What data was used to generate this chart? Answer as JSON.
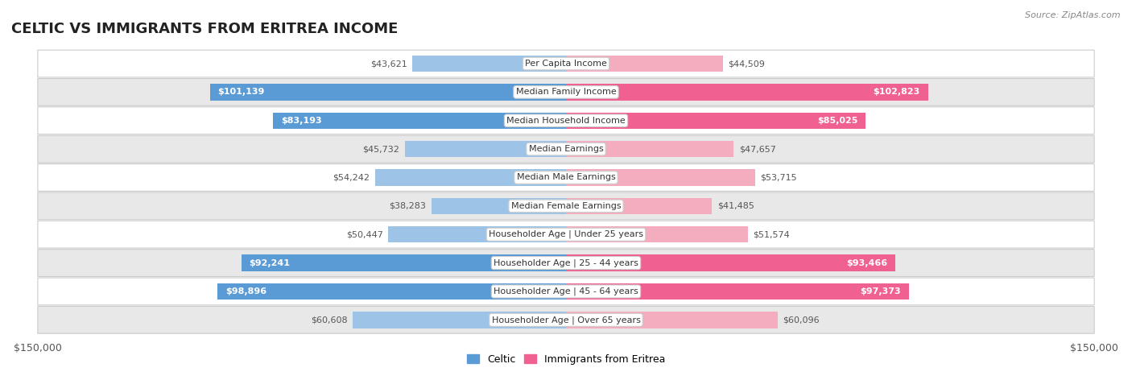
{
  "title": "Celtic vs Immigrants from Eritrea Income",
  "source": "Source: ZipAtlas.com",
  "categories": [
    "Per Capita Income",
    "Median Family Income",
    "Median Household Income",
    "Median Earnings",
    "Median Male Earnings",
    "Median Female Earnings",
    "Householder Age | Under 25 years",
    "Householder Age | 25 - 44 years",
    "Householder Age | 45 - 64 years",
    "Householder Age | Over 65 years"
  ],
  "celtic_values": [
    43621,
    101139,
    83193,
    45732,
    54242,
    38283,
    50447,
    92241,
    98896,
    60608
  ],
  "eritrea_values": [
    44509,
    102823,
    85025,
    47657,
    53715,
    41485,
    51574,
    93466,
    97373,
    60096
  ],
  "celtic_labels": [
    "$43,621",
    "$101,139",
    "$83,193",
    "$45,732",
    "$54,242",
    "$38,283",
    "$50,447",
    "$92,241",
    "$98,896",
    "$60,608"
  ],
  "eritrea_labels": [
    "$44,509",
    "$102,823",
    "$85,025",
    "$47,657",
    "$53,715",
    "$41,485",
    "$51,574",
    "$93,466",
    "$97,373",
    "$60,096"
  ],
  "max_value": 150000,
  "celtic_color_strong": "#5B9BD5",
  "celtic_color_light": "#9DC3E6",
  "eritrea_color_strong": "#F06090",
  "eritrea_color_light": "#F4ACBF",
  "inside_threshold": 70000,
  "bar_height": 0.58,
  "background_color": "#ffffff",
  "row_bg_light": "#ffffff",
  "row_bg_dark": "#e8e8e8",
  "row_border_color": "#cccccc",
  "legend_celtic": "Celtic",
  "legend_eritrea": "Immigrants from Eritrea",
  "xlabel_left": "$150,000",
  "xlabel_right": "$150,000",
  "title_fontsize": 13,
  "label_fontsize": 8,
  "category_fontsize": 8
}
